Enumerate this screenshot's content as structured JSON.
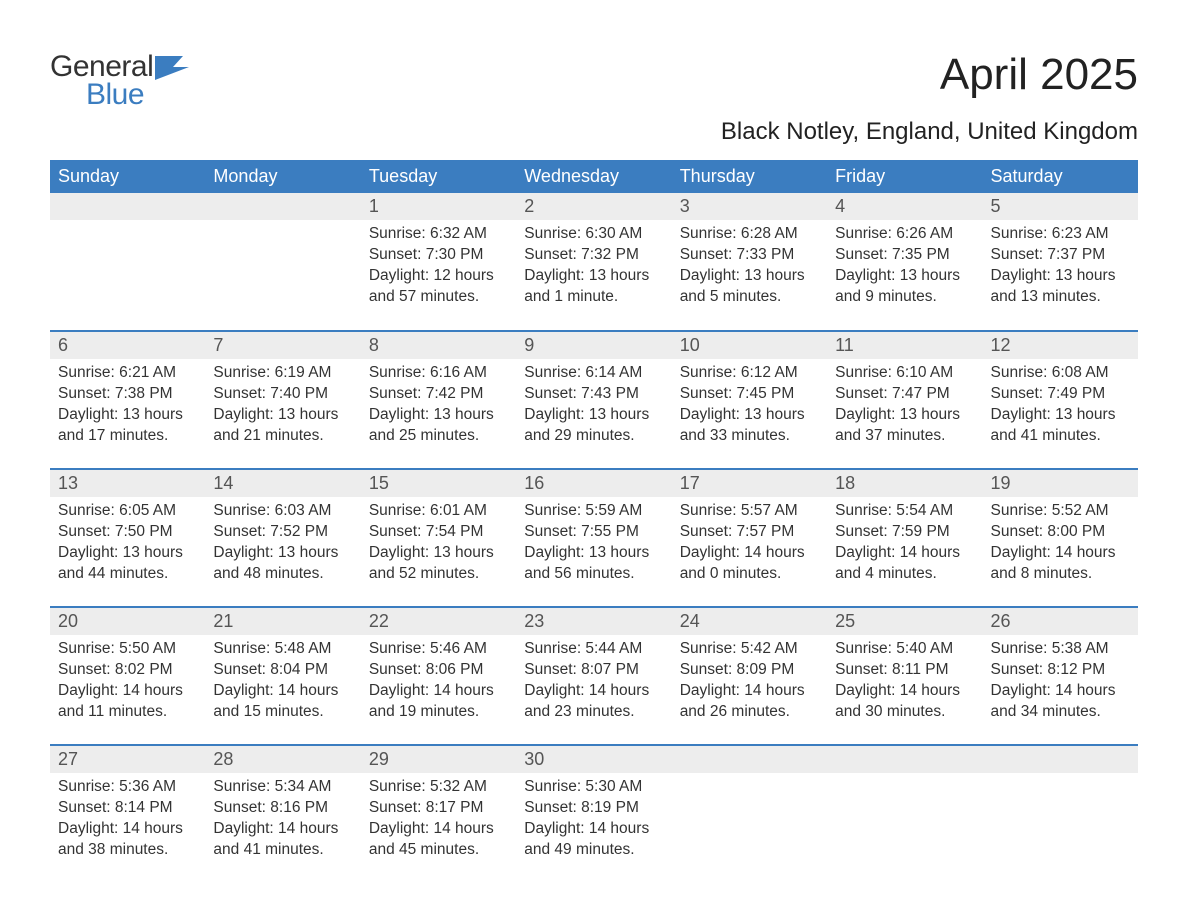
{
  "brand": {
    "word1": "General",
    "word2": "Blue",
    "accent": "#3b7dc0"
  },
  "title": {
    "month": "April 2025",
    "location": "Black Notley, England, United Kingdom"
  },
  "colors": {
    "header_bg": "#3b7dc0",
    "header_fg": "#ffffff",
    "daynum_bg": "#ededed",
    "text": "#333333",
    "page_bg": "#ffffff"
  },
  "fonts": {
    "base_family": "Arial",
    "title_pt": 44,
    "location_pt": 24,
    "header_pt": 18,
    "body_pt": 15.5
  },
  "weekdays": [
    "Sunday",
    "Monday",
    "Tuesday",
    "Wednesday",
    "Thursday",
    "Friday",
    "Saturday"
  ],
  "weeks": [
    [
      null,
      null,
      {
        "n": "1",
        "sunrise": "6:32 AM",
        "sunset": "7:30 PM",
        "daylight": "12 hours and 57 minutes."
      },
      {
        "n": "2",
        "sunrise": "6:30 AM",
        "sunset": "7:32 PM",
        "daylight": "13 hours and 1 minute."
      },
      {
        "n": "3",
        "sunrise": "6:28 AM",
        "sunset": "7:33 PM",
        "daylight": "13 hours and 5 minutes."
      },
      {
        "n": "4",
        "sunrise": "6:26 AM",
        "sunset": "7:35 PM",
        "daylight": "13 hours and 9 minutes."
      },
      {
        "n": "5",
        "sunrise": "6:23 AM",
        "sunset": "7:37 PM",
        "daylight": "13 hours and 13 minutes."
      }
    ],
    [
      {
        "n": "6",
        "sunrise": "6:21 AM",
        "sunset": "7:38 PM",
        "daylight": "13 hours and 17 minutes."
      },
      {
        "n": "7",
        "sunrise": "6:19 AM",
        "sunset": "7:40 PM",
        "daylight": "13 hours and 21 minutes."
      },
      {
        "n": "8",
        "sunrise": "6:16 AM",
        "sunset": "7:42 PM",
        "daylight": "13 hours and 25 minutes."
      },
      {
        "n": "9",
        "sunrise": "6:14 AM",
        "sunset": "7:43 PM",
        "daylight": "13 hours and 29 minutes."
      },
      {
        "n": "10",
        "sunrise": "6:12 AM",
        "sunset": "7:45 PM",
        "daylight": "13 hours and 33 minutes."
      },
      {
        "n": "11",
        "sunrise": "6:10 AM",
        "sunset": "7:47 PM",
        "daylight": "13 hours and 37 minutes."
      },
      {
        "n": "12",
        "sunrise": "6:08 AM",
        "sunset": "7:49 PM",
        "daylight": "13 hours and 41 minutes."
      }
    ],
    [
      {
        "n": "13",
        "sunrise": "6:05 AM",
        "sunset": "7:50 PM",
        "daylight": "13 hours and 44 minutes."
      },
      {
        "n": "14",
        "sunrise": "6:03 AM",
        "sunset": "7:52 PM",
        "daylight": "13 hours and 48 minutes."
      },
      {
        "n": "15",
        "sunrise": "6:01 AM",
        "sunset": "7:54 PM",
        "daylight": "13 hours and 52 minutes."
      },
      {
        "n": "16",
        "sunrise": "5:59 AM",
        "sunset": "7:55 PM",
        "daylight": "13 hours and 56 minutes."
      },
      {
        "n": "17",
        "sunrise": "5:57 AM",
        "sunset": "7:57 PM",
        "daylight": "14 hours and 0 minutes."
      },
      {
        "n": "18",
        "sunrise": "5:54 AM",
        "sunset": "7:59 PM",
        "daylight": "14 hours and 4 minutes."
      },
      {
        "n": "19",
        "sunrise": "5:52 AM",
        "sunset": "8:00 PM",
        "daylight": "14 hours and 8 minutes."
      }
    ],
    [
      {
        "n": "20",
        "sunrise": "5:50 AM",
        "sunset": "8:02 PM",
        "daylight": "14 hours and 11 minutes."
      },
      {
        "n": "21",
        "sunrise": "5:48 AM",
        "sunset": "8:04 PM",
        "daylight": "14 hours and 15 minutes."
      },
      {
        "n": "22",
        "sunrise": "5:46 AM",
        "sunset": "8:06 PM",
        "daylight": "14 hours and 19 minutes."
      },
      {
        "n": "23",
        "sunrise": "5:44 AM",
        "sunset": "8:07 PM",
        "daylight": "14 hours and 23 minutes."
      },
      {
        "n": "24",
        "sunrise": "5:42 AM",
        "sunset": "8:09 PM",
        "daylight": "14 hours and 26 minutes."
      },
      {
        "n": "25",
        "sunrise": "5:40 AM",
        "sunset": "8:11 PM",
        "daylight": "14 hours and 30 minutes."
      },
      {
        "n": "26",
        "sunrise": "5:38 AM",
        "sunset": "8:12 PM",
        "daylight": "14 hours and 34 minutes."
      }
    ],
    [
      {
        "n": "27",
        "sunrise": "5:36 AM",
        "sunset": "8:14 PM",
        "daylight": "14 hours and 38 minutes."
      },
      {
        "n": "28",
        "sunrise": "5:34 AM",
        "sunset": "8:16 PM",
        "daylight": "14 hours and 41 minutes."
      },
      {
        "n": "29",
        "sunrise": "5:32 AM",
        "sunset": "8:17 PM",
        "daylight": "14 hours and 45 minutes."
      },
      {
        "n": "30",
        "sunrise": "5:30 AM",
        "sunset": "8:19 PM",
        "daylight": "14 hours and 49 minutes."
      },
      null,
      null,
      null
    ]
  ],
  "labels": {
    "sunrise": "Sunrise: ",
    "sunset": "Sunset: ",
    "daylight": "Daylight: "
  }
}
